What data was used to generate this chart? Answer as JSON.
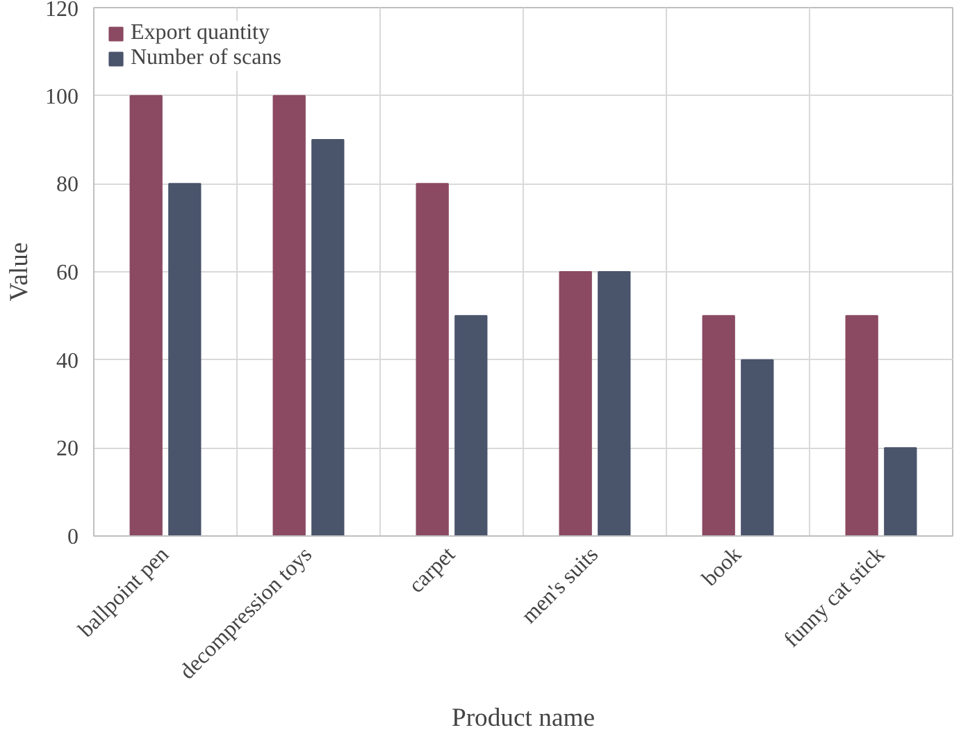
{
  "chart_data": {
    "type": "bar",
    "xlabel": "Product name",
    "ylabel": "Value",
    "categories": [
      "ballpoint pen",
      "decompression toys",
      "carpet",
      "men's suits",
      "book",
      "funny cat stick"
    ],
    "series": [
      {
        "name": "Export quantity",
        "color": "#8b4a62",
        "values": [
          100,
          100,
          80,
          60,
          50,
          50
        ]
      },
      {
        "name": "Number of scans",
        "color": "#4a546b",
        "values": [
          80,
          90,
          50,
          60,
          40,
          20
        ]
      }
    ],
    "ylim": [
      0,
      120
    ],
    "yticks": [
      0,
      20,
      40,
      60,
      80,
      100,
      120
    ],
    "grid": true,
    "legend": "top left"
  }
}
